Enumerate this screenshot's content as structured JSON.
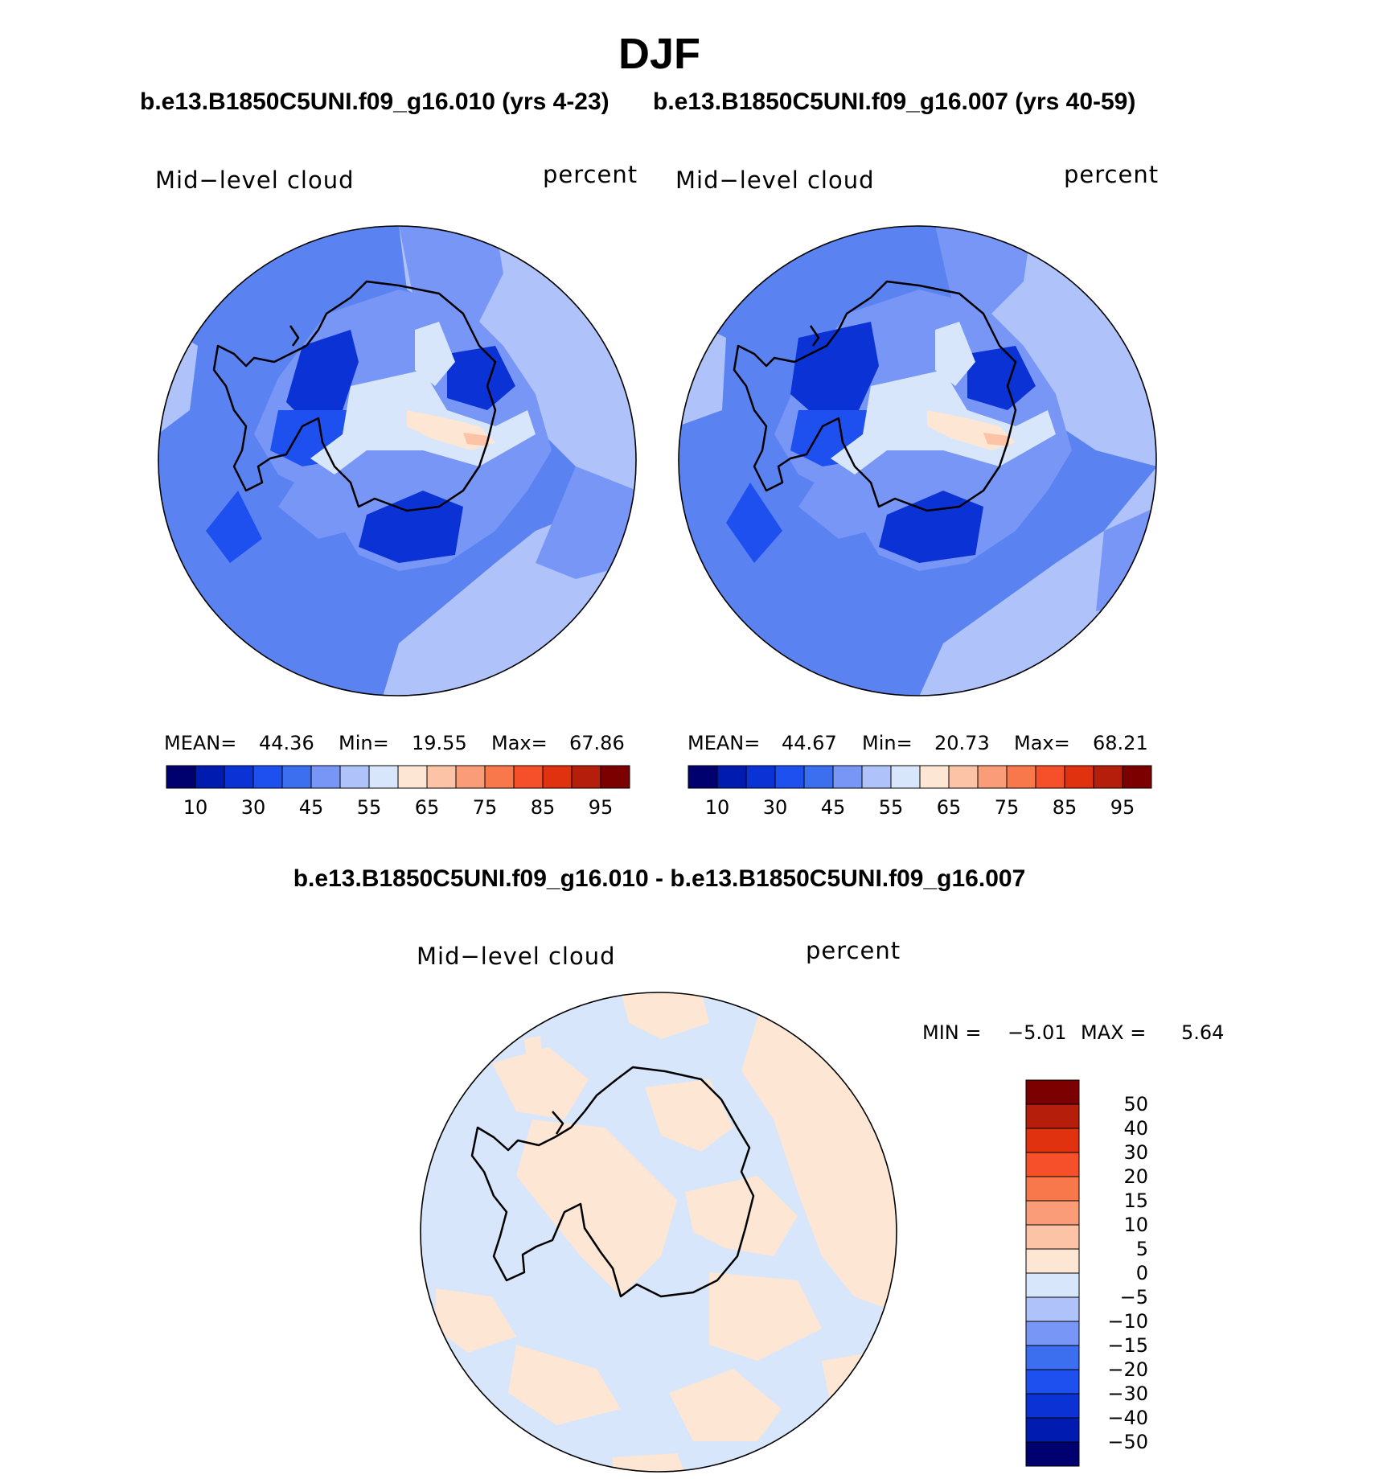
{
  "title": "DJF",
  "top_left": {
    "case": "b.e13.B1850C5UNI.f09_g16.010 (yrs 4-23)",
    "field": "Mid−level cloud",
    "units": "percent",
    "mean_label": "MEAN=",
    "mean": "44.36",
    "min_label": "Min=",
    "min": "19.55",
    "max_label": "Max=",
    "max": "67.86"
  },
  "top_right": {
    "case": "b.e13.B1850C5UNI.f09_g16.007 (yrs 40-59)",
    "field": "Mid−level cloud",
    "units": "percent",
    "mean_label": "MEAN=",
    "mean": "44.67",
    "min_label": "Min=",
    "min": "20.73",
    "max_label": "Max=",
    "max": "68.21"
  },
  "abs_colorbar": {
    "colors": [
      "#00006e",
      "#001bb0",
      "#0a32d4",
      "#1e50f0",
      "#3c6ef0",
      "#7896f5",
      "#afc3fa",
      "#d7e6fa",
      "#fde6d4",
      "#fcc3a6",
      "#fb9c78",
      "#f8784b",
      "#f6502a",
      "#e13210",
      "#b41e0a",
      "#7d0000"
    ],
    "labels": [
      "10",
      "30",
      "45",
      "55",
      "65",
      "75",
      "85",
      "95"
    ]
  },
  "difference": {
    "title": "b.e13.B1850C5UNI.f09_g16.010 - b.e13.B1850C5UNI.f09_g16.007",
    "field": "Mid−level cloud",
    "units": "percent",
    "min_label": "MIN =",
    "min": "−5.01",
    "max_label": "MAX =",
    "max": "5.64"
  },
  "diff_colorbar": {
    "colors": [
      "#7d0000",
      "#b41e0a",
      "#e13210",
      "#f6502a",
      "#f8784b",
      "#fb9c78",
      "#fcc3a6",
      "#fde6d4",
      "#d7e6fa",
      "#afc3fa",
      "#7896f5",
      "#3c6ef0",
      "#1e50f0",
      "#0a32d4",
      "#001bb0",
      "#00006e"
    ],
    "labels": [
      "50",
      "40",
      "30",
      "20",
      "15",
      "10",
      "5",
      "0",
      "−5",
      "−10",
      "−15",
      "−20",
      "−30",
      "−40",
      "−50"
    ]
  },
  "map_colors": {
    "ocean_abs": "#5a82f0",
    "pale_blue": "#afc3fa",
    "mid_blue": "#7896f5",
    "dark_blue": "#1e50f0",
    "navy": "#0a32d4",
    "whitish": "#d7e6fa",
    "peach": "#fde6d4",
    "salmon": "#fcc3a6",
    "diff_neg": "#d7e6fa",
    "diff_pos": "#fde6d4",
    "coast": "#000000"
  }
}
